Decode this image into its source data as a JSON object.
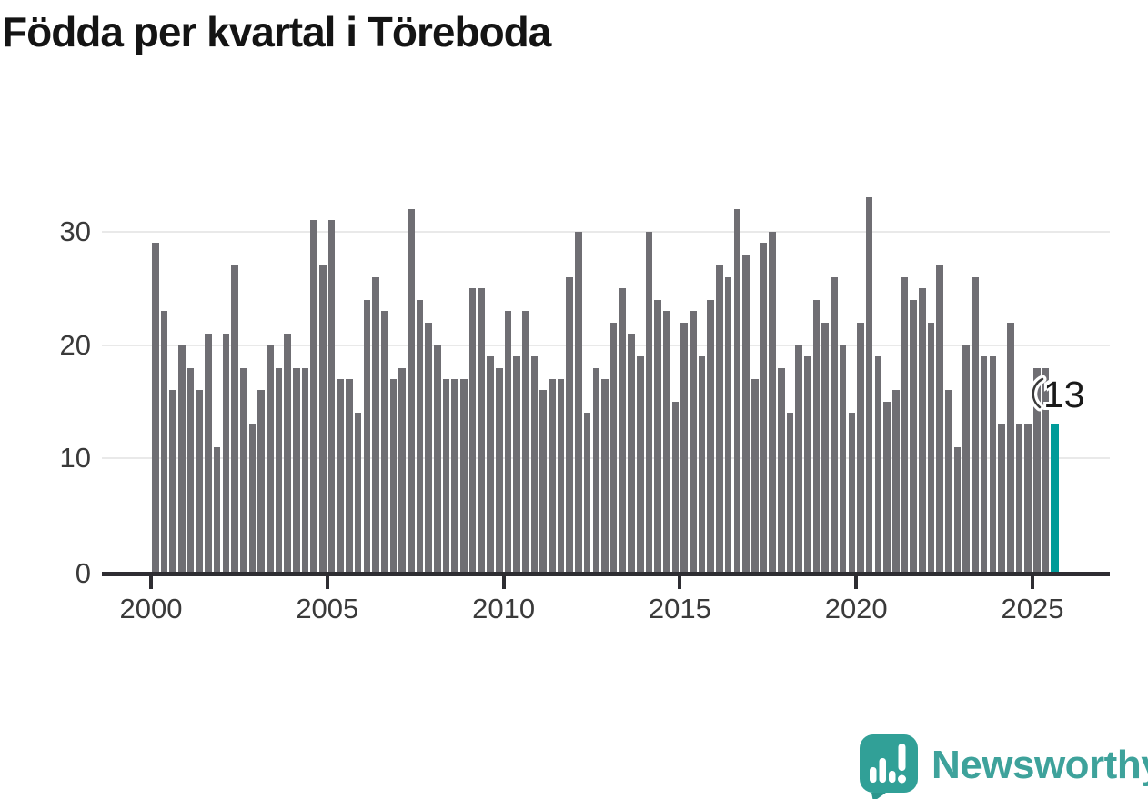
{
  "title": "Födda per kvartal i Töreboda",
  "chart_data": {
    "type": "bar",
    "title": "Födda per kvartal i Töreboda",
    "x_start": "2000-Q1",
    "x_end": "2025-Q3",
    "quarters_per_year": 4,
    "start_year": 2000,
    "values": [
      29,
      23,
      16,
      20,
      18,
      16,
      21,
      11,
      21,
      27,
      18,
      13,
      16,
      20,
      18,
      21,
      18,
      18,
      31,
      27,
      31,
      17,
      17,
      14,
      24,
      26,
      23,
      17,
      18,
      32,
      24,
      22,
      20,
      17,
      17,
      17,
      25,
      25,
      19,
      18,
      23,
      19,
      23,
      19,
      16,
      17,
      17,
      26,
      30,
      14,
      18,
      17,
      22,
      25,
      21,
      19,
      30,
      24,
      23,
      15,
      22,
      23,
      19,
      24,
      27,
      26,
      32,
      28,
      17,
      29,
      30,
      18,
      14,
      20,
      19,
      24,
      22,
      26,
      20,
      14,
      22,
      33,
      19,
      15,
      16,
      26,
      24,
      25,
      22,
      27,
      16,
      11,
      20,
      26,
      19,
      19,
      13,
      22,
      13,
      13,
      18,
      18,
      13
    ],
    "x_tick_labels": [
      "2000",
      "2005",
      "2010",
      "2015",
      "2020",
      "2025"
    ],
    "y_tick_values": [
      0,
      10,
      20,
      30
    ],
    "y_tick_labels": [
      "0",
      "10",
      "20",
      "30"
    ],
    "ylim": [
      0,
      34.5
    ],
    "grid": "horizontal",
    "legend": "none",
    "bar_color": "#6f6e73",
    "highlight": {
      "index": 102,
      "period": "2025-Q3",
      "value": 13,
      "label": "13",
      "color": "#009b99"
    }
  },
  "annotation": {
    "label": "13"
  },
  "footer": {
    "brand": "Newsworthy"
  },
  "colors": {
    "background": "#ffffff",
    "bar_gray": "#6f6e73",
    "bar_teal": "#009b99",
    "gridline": "#e9e9e9",
    "axis": "#2e2d32",
    "title_text": "#141414",
    "tick_text": "#3a3a3a",
    "logo_teal": "#31a097",
    "brand_text": "#3ea29b"
  }
}
